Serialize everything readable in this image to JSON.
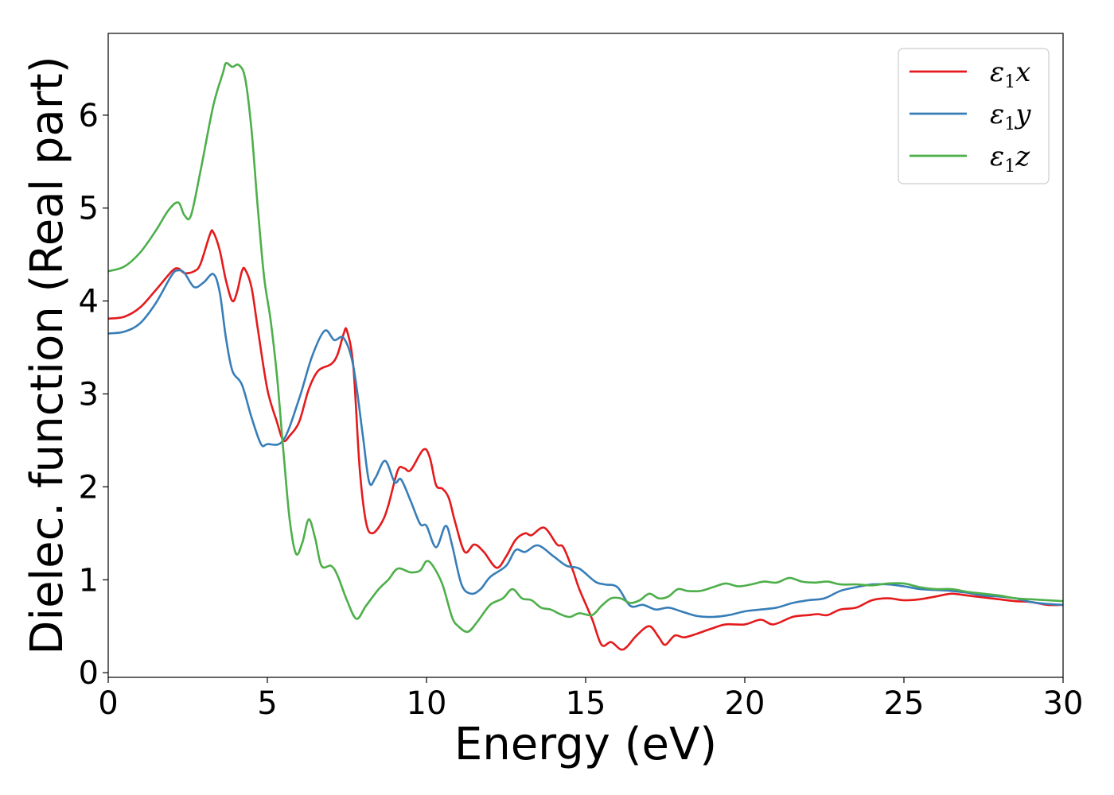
{
  "chart_data": {
    "type": "line",
    "title": "",
    "xlabel": "Energy (eV)",
    "ylabel": "Dielec. function (Real part)",
    "xlim": [
      0,
      30
    ],
    "ylim": [
      -0.05,
      6.88
    ],
    "x_ticks": [
      "0",
      "5",
      "10",
      "15",
      "20",
      "25",
      "30"
    ],
    "y_ticks": [
      "0",
      "1",
      "2",
      "3",
      "4",
      "5",
      "6"
    ],
    "grid": false,
    "legend_position": "top-right",
    "series": [
      {
        "name": "ε1x",
        "legend_symbol": "ε",
        "legend_sub": "1",
        "legend_axis": "x",
        "color": "#e41a1c",
        "points": [
          [
            0,
            3.81
          ],
          [
            0.5,
            3.83
          ],
          [
            1.0,
            3.93
          ],
          [
            1.5,
            4.12
          ],
          [
            2.0,
            4.32
          ],
          [
            2.2,
            4.35
          ],
          [
            2.4,
            4.3
          ],
          [
            2.7,
            4.32
          ],
          [
            2.9,
            4.4
          ],
          [
            3.2,
            4.72
          ],
          [
            3.3,
            4.74
          ],
          [
            3.5,
            4.55
          ],
          [
            3.7,
            4.22
          ],
          [
            3.9,
            4.0
          ],
          [
            4.05,
            4.1
          ],
          [
            4.2,
            4.32
          ],
          [
            4.3,
            4.34
          ],
          [
            4.5,
            4.15
          ],
          [
            4.7,
            3.7
          ],
          [
            5.0,
            3.05
          ],
          [
            5.3,
            2.7
          ],
          [
            5.5,
            2.5
          ],
          [
            5.7,
            2.55
          ],
          [
            6.0,
            2.7
          ],
          [
            6.3,
            3.05
          ],
          [
            6.6,
            3.25
          ],
          [
            7.0,
            3.32
          ],
          [
            7.2,
            3.42
          ],
          [
            7.4,
            3.65
          ],
          [
            7.5,
            3.68
          ],
          [
            7.7,
            3.3
          ],
          [
            7.9,
            2.2
          ],
          [
            8.1,
            1.62
          ],
          [
            8.3,
            1.5
          ],
          [
            8.6,
            1.62
          ],
          [
            8.8,
            1.8
          ],
          [
            9.1,
            2.18
          ],
          [
            9.3,
            2.2
          ],
          [
            9.5,
            2.18
          ],
          [
            9.9,
            2.4
          ],
          [
            10.1,
            2.32
          ],
          [
            10.3,
            2.02
          ],
          [
            10.5,
            1.98
          ],
          [
            10.7,
            1.88
          ],
          [
            10.9,
            1.62
          ],
          [
            11.2,
            1.3
          ],
          [
            11.5,
            1.38
          ],
          [
            11.8,
            1.3
          ],
          [
            12.2,
            1.13
          ],
          [
            12.5,
            1.25
          ],
          [
            12.8,
            1.43
          ],
          [
            13.1,
            1.5
          ],
          [
            13.3,
            1.48
          ],
          [
            13.7,
            1.56
          ],
          [
            14.1,
            1.38
          ],
          [
            14.3,
            1.35
          ],
          [
            14.6,
            1.1
          ],
          [
            14.8,
            0.9
          ],
          [
            15.2,
            0.58
          ],
          [
            15.5,
            0.3
          ],
          [
            15.8,
            0.33
          ],
          [
            16.1,
            0.25
          ],
          [
            16.3,
            0.28
          ],
          [
            16.6,
            0.4
          ],
          [
            17.0,
            0.5
          ],
          [
            17.3,
            0.38
          ],
          [
            17.5,
            0.3
          ],
          [
            17.8,
            0.4
          ],
          [
            18.1,
            0.38
          ],
          [
            18.5,
            0.42
          ],
          [
            19.0,
            0.48
          ],
          [
            19.4,
            0.52
          ],
          [
            20.0,
            0.52
          ],
          [
            20.5,
            0.57
          ],
          [
            20.9,
            0.52
          ],
          [
            21.5,
            0.6
          ],
          [
            22.0,
            0.62
          ],
          [
            22.3,
            0.63
          ],
          [
            22.6,
            0.62
          ],
          [
            23.0,
            0.68
          ],
          [
            23.5,
            0.7
          ],
          [
            24.0,
            0.78
          ],
          [
            24.5,
            0.8
          ],
          [
            25.0,
            0.78
          ],
          [
            25.5,
            0.79
          ],
          [
            26.0,
            0.82
          ],
          [
            26.5,
            0.85
          ],
          [
            27.0,
            0.83
          ],
          [
            27.5,
            0.81
          ],
          [
            28.0,
            0.79
          ],
          [
            28.5,
            0.77
          ],
          [
            29.0,
            0.76
          ],
          [
            29.5,
            0.73
          ],
          [
            30.0,
            0.73
          ]
        ]
      },
      {
        "name": "ε1y",
        "legend_symbol": "ε",
        "legend_sub": "1",
        "legend_axis": "y",
        "color": "#377eb8",
        "points": [
          [
            0,
            3.65
          ],
          [
            0.5,
            3.67
          ],
          [
            1.0,
            3.76
          ],
          [
            1.5,
            3.98
          ],
          [
            2.0,
            4.28
          ],
          [
            2.2,
            4.33
          ],
          [
            2.4,
            4.3
          ],
          [
            2.7,
            4.15
          ],
          [
            3.0,
            4.2
          ],
          [
            3.3,
            4.29
          ],
          [
            3.5,
            4.1
          ],
          [
            3.7,
            3.6
          ],
          [
            3.9,
            3.25
          ],
          [
            4.2,
            3.1
          ],
          [
            4.5,
            2.75
          ],
          [
            4.8,
            2.46
          ],
          [
            5.0,
            2.46
          ],
          [
            5.5,
            2.5
          ],
          [
            6.0,
            2.95
          ],
          [
            6.4,
            3.4
          ],
          [
            6.8,
            3.68
          ],
          [
            7.1,
            3.58
          ],
          [
            7.4,
            3.6
          ],
          [
            7.7,
            3.3
          ],
          [
            8.0,
            2.55
          ],
          [
            8.2,
            2.05
          ],
          [
            8.4,
            2.1
          ],
          [
            8.7,
            2.28
          ],
          [
            9.0,
            2.05
          ],
          [
            9.2,
            2.08
          ],
          [
            9.5,
            1.85
          ],
          [
            9.8,
            1.6
          ],
          [
            10.0,
            1.58
          ],
          [
            10.3,
            1.35
          ],
          [
            10.6,
            1.58
          ],
          [
            10.8,
            1.38
          ],
          [
            11.1,
            0.95
          ],
          [
            11.4,
            0.85
          ],
          [
            11.7,
            0.9
          ],
          [
            12.0,
            1.03
          ],
          [
            12.5,
            1.15
          ],
          [
            12.8,
            1.32
          ],
          [
            13.1,
            1.3
          ],
          [
            13.5,
            1.37
          ],
          [
            14.0,
            1.25
          ],
          [
            14.4,
            1.15
          ],
          [
            14.8,
            1.12
          ],
          [
            15.3,
            0.98
          ],
          [
            15.6,
            0.95
          ],
          [
            16.0,
            0.92
          ],
          [
            16.4,
            0.72
          ],
          [
            16.8,
            0.73
          ],
          [
            17.2,
            0.68
          ],
          [
            17.6,
            0.7
          ],
          [
            18.0,
            0.66
          ],
          [
            18.5,
            0.61
          ],
          [
            19.0,
            0.6
          ],
          [
            19.5,
            0.62
          ],
          [
            20.0,
            0.66
          ],
          [
            20.5,
            0.68
          ],
          [
            21.0,
            0.7
          ],
          [
            21.5,
            0.75
          ],
          [
            22.0,
            0.78
          ],
          [
            22.5,
            0.8
          ],
          [
            23.0,
            0.88
          ],
          [
            23.5,
            0.92
          ],
          [
            24.0,
            0.95
          ],
          [
            24.5,
            0.95
          ],
          [
            25.0,
            0.93
          ],
          [
            25.5,
            0.9
          ],
          [
            26.0,
            0.89
          ],
          [
            26.5,
            0.88
          ],
          [
            27.0,
            0.86
          ],
          [
            27.5,
            0.83
          ],
          [
            28.0,
            0.82
          ],
          [
            28.5,
            0.8
          ],
          [
            29.0,
            0.76
          ],
          [
            29.5,
            0.74
          ],
          [
            30.0,
            0.73
          ]
        ]
      },
      {
        "name": "ε1z",
        "legend_symbol": "ε",
        "legend_sub": "1",
        "legend_axis": "z",
        "color": "#4daf4a",
        "points": [
          [
            0,
            4.32
          ],
          [
            0.5,
            4.37
          ],
          [
            1.0,
            4.52
          ],
          [
            1.5,
            4.76
          ],
          [
            1.9,
            4.98
          ],
          [
            2.2,
            5.06
          ],
          [
            2.4,
            4.92
          ],
          [
            2.6,
            4.92
          ],
          [
            2.9,
            5.4
          ],
          [
            3.3,
            6.1
          ],
          [
            3.6,
            6.45
          ],
          [
            3.7,
            6.56
          ],
          [
            3.9,
            6.52
          ],
          [
            4.1,
            6.54
          ],
          [
            4.3,
            6.4
          ],
          [
            4.5,
            5.85
          ],
          [
            4.7,
            5.0
          ],
          [
            4.9,
            4.25
          ],
          [
            5.1,
            3.8
          ],
          [
            5.3,
            3.2
          ],
          [
            5.5,
            2.4
          ],
          [
            5.7,
            1.65
          ],
          [
            5.9,
            1.28
          ],
          [
            6.1,
            1.4
          ],
          [
            6.3,
            1.65
          ],
          [
            6.5,
            1.45
          ],
          [
            6.7,
            1.15
          ],
          [
            7.0,
            1.15
          ],
          [
            7.2,
            1.05
          ],
          [
            7.5,
            0.78
          ],
          [
            7.8,
            0.58
          ],
          [
            8.1,
            0.72
          ],
          [
            8.5,
            0.9
          ],
          [
            8.8,
            1.0
          ],
          [
            9.1,
            1.12
          ],
          [
            9.5,
            1.08
          ],
          [
            9.8,
            1.1
          ],
          [
            10.0,
            1.2
          ],
          [
            10.2,
            1.15
          ],
          [
            10.5,
            0.95
          ],
          [
            10.8,
            0.6
          ],
          [
            11.0,
            0.5
          ],
          [
            11.3,
            0.44
          ],
          [
            11.6,
            0.55
          ],
          [
            12.0,
            0.73
          ],
          [
            12.4,
            0.8
          ],
          [
            12.7,
            0.9
          ],
          [
            13.0,
            0.8
          ],
          [
            13.3,
            0.78
          ],
          [
            13.6,
            0.7
          ],
          [
            13.9,
            0.68
          ],
          [
            14.2,
            0.63
          ],
          [
            14.5,
            0.6
          ],
          [
            14.8,
            0.64
          ],
          [
            15.2,
            0.62
          ],
          [
            15.5,
            0.72
          ],
          [
            15.8,
            0.8
          ],
          [
            16.1,
            0.8
          ],
          [
            16.4,
            0.75
          ],
          [
            16.7,
            0.78
          ],
          [
            17.0,
            0.85
          ],
          [
            17.3,
            0.8
          ],
          [
            17.6,
            0.82
          ],
          [
            17.9,
            0.9
          ],
          [
            18.2,
            0.88
          ],
          [
            18.6,
            0.88
          ],
          [
            19.0,
            0.92
          ],
          [
            19.4,
            0.96
          ],
          [
            19.8,
            0.93
          ],
          [
            20.2,
            0.95
          ],
          [
            20.6,
            0.98
          ],
          [
            21.0,
            0.97
          ],
          [
            21.4,
            1.02
          ],
          [
            21.8,
            0.98
          ],
          [
            22.2,
            0.97
          ],
          [
            22.6,
            0.98
          ],
          [
            23.0,
            0.95
          ],
          [
            23.5,
            0.95
          ],
          [
            24.0,
            0.94
          ],
          [
            24.5,
            0.96
          ],
          [
            25.0,
            0.96
          ],
          [
            25.5,
            0.92
          ],
          [
            26.0,
            0.9
          ],
          [
            26.5,
            0.9
          ],
          [
            27.0,
            0.87
          ],
          [
            27.5,
            0.85
          ],
          [
            28.0,
            0.83
          ],
          [
            28.5,
            0.8
          ],
          [
            29.0,
            0.79
          ],
          [
            29.5,
            0.78
          ],
          [
            30.0,
            0.77
          ]
        ]
      }
    ]
  }
}
